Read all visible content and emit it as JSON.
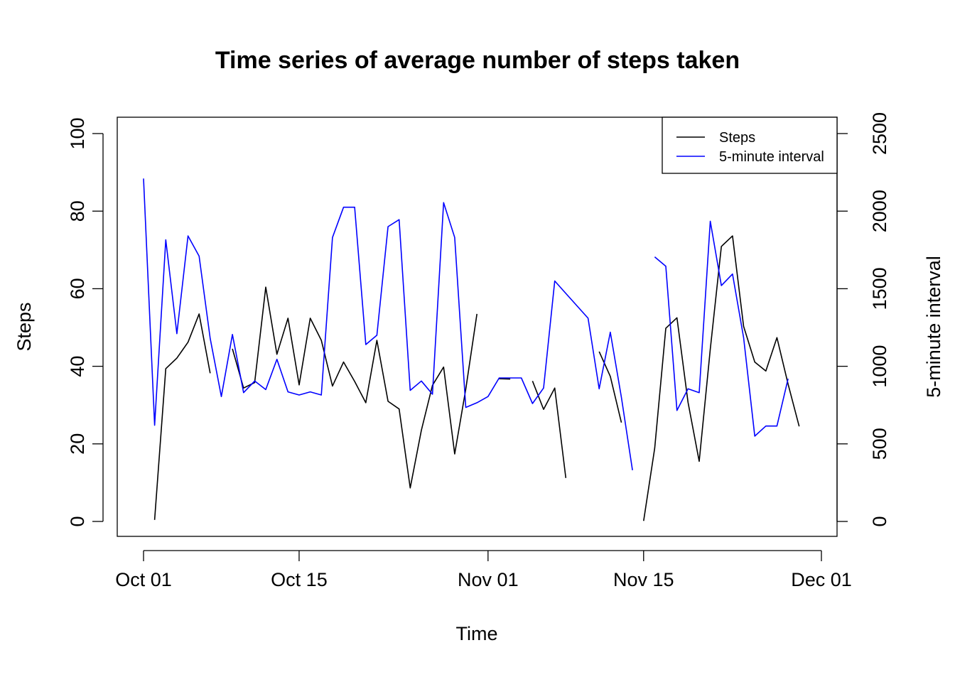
{
  "chart_data": {
    "type": "line",
    "title": "Time series of average number of steps taken",
    "xlabel": "Time",
    "ylabel": "Steps",
    "y2label": "5-minute interval",
    "x_type": "date",
    "x_ticks": [
      "Oct 01",
      "Oct 15",
      "Nov 01",
      "Nov 15",
      "Dec 01"
    ],
    "x_tick_dates": [
      "2012-10-01",
      "2012-10-15",
      "2012-11-01",
      "2012-11-15",
      "2012-12-01"
    ],
    "ylim": [
      0,
      100
    ],
    "y_ticks": [
      "0",
      "20",
      "40",
      "60",
      "80",
      "100"
    ],
    "y2lim": [
      0,
      2500
    ],
    "y2_ticks": [
      "0",
      "500",
      "1000",
      "1500",
      "2000",
      "2500"
    ],
    "legend": {
      "position": "top-right",
      "entries": [
        {
          "label": "Steps",
          "color": "#000000"
        },
        {
          "label": "5-minute interval",
          "color": "#0000ff"
        }
      ]
    },
    "grid": false,
    "dates": [
      "2012-10-01",
      "2012-10-02",
      "2012-10-03",
      "2012-10-04",
      "2012-10-05",
      "2012-10-06",
      "2012-10-07",
      "2012-10-08",
      "2012-10-09",
      "2012-10-10",
      "2012-10-11",
      "2012-10-12",
      "2012-10-13",
      "2012-10-14",
      "2012-10-15",
      "2012-10-16",
      "2012-10-17",
      "2012-10-18",
      "2012-10-19",
      "2012-10-20",
      "2012-10-21",
      "2012-10-22",
      "2012-10-23",
      "2012-10-24",
      "2012-10-25",
      "2012-10-26",
      "2012-10-27",
      "2012-10-28",
      "2012-10-29",
      "2012-10-30",
      "2012-10-31",
      "2012-11-01",
      "2012-11-02",
      "2012-11-03",
      "2012-11-04",
      "2012-11-05",
      "2012-11-06",
      "2012-11-07",
      "2012-11-08",
      "2012-11-09",
      "2012-11-10",
      "2012-11-11",
      "2012-11-12",
      "2012-11-13",
      "2012-11-14",
      "2012-11-15",
      "2012-11-16",
      "2012-11-17",
      "2012-11-18",
      "2012-11-19",
      "2012-11-20",
      "2012-11-21",
      "2012-11-22",
      "2012-11-23",
      "2012-11-24",
      "2012-11-25",
      "2012-11-26",
      "2012-11-27",
      "2012-11-28",
      "2012-11-29",
      "2012-11-30"
    ],
    "series": [
      {
        "name": "Steps",
        "axis": "left",
        "color": "#000000",
        "values": [
          null,
          0.4,
          39.4,
          42.1,
          46.2,
          53.5,
          38.2,
          null,
          44.5,
          34.4,
          35.8,
          60.4,
          43.1,
          52.4,
          35.2,
          52.4,
          46.7,
          34.9,
          41.1,
          36.1,
          30.6,
          46.7,
          30.97,
          29.0,
          8.65,
          23.5,
          35.1,
          39.8,
          17.4,
          34.1,
          53.5,
          null,
          36.8,
          36.7,
          null,
          36.2,
          28.9,
          34.4,
          11.2,
          null,
          null,
          43.8,
          37.4,
          25.5,
          null,
          0.14,
          18.9,
          49.8,
          52.5,
          30.7,
          15.5,
          44.4,
          70.9,
          73.6,
          50.3,
          41.1,
          38.8,
          47.4,
          35.4,
          24.5,
          null
        ]
      },
      {
        "name": "5-minute interval",
        "axis": "right",
        "color": "#0000ff",
        "values": [
          2210,
          620,
          1815,
          1210,
          1840,
          1710,
          1180,
          805,
          1205,
          830,
          905,
          850,
          1045,
          835,
          815,
          835,
          815,
          1830,
          2025,
          2025,
          1140,
          1200,
          1900,
          1945,
          845,
          905,
          820,
          2055,
          1830,
          735,
          765,
          805,
          925,
          925,
          925,
          760,
          860,
          1550,
          1470,
          1390,
          1310,
          855,
          1220,
          800,
          330,
          null,
          1705,
          1645,
          715,
          855,
          830,
          1935,
          1520,
          1595,
          1185,
          550,
          615,
          615,
          920,
          null,
          null
        ]
      }
    ]
  }
}
